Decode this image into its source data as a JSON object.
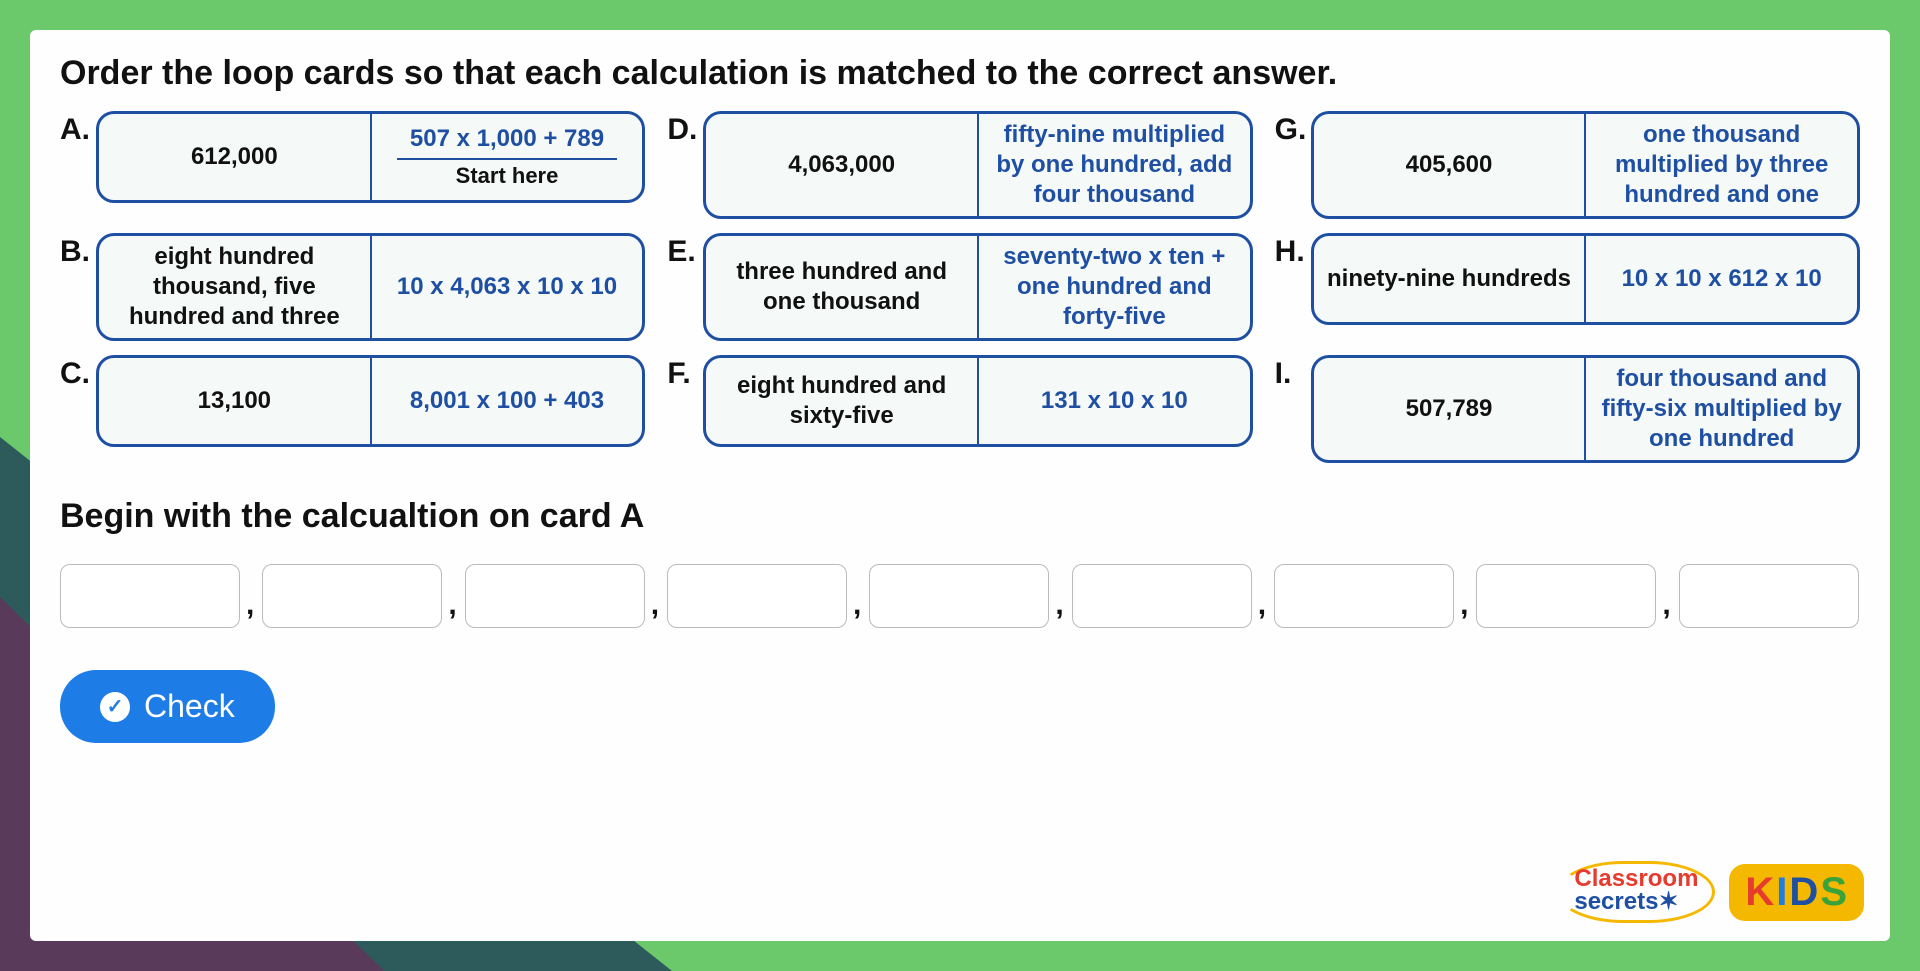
{
  "instruction": "Order the loop cards so that each calculation is matched to the correct answer.",
  "begin_text": "Begin with the calcualtion on card A",
  "check_label": "Check",
  "colors": {
    "card_border": "#1e4fa3",
    "card_bg": "#f5f9f7",
    "left_text": "#111111",
    "right_text": "#1e4fa3",
    "panel_bg": "#fdfefd",
    "button_bg": "#1e7ce6",
    "bg_green": "#6bc96b",
    "bg_teal": "#2d5a5a",
    "bg_purple": "#5a3a5a"
  },
  "cards": [
    {
      "letter": "A.",
      "left": "612,000",
      "right": "507 x 1,000 + 789",
      "start_here": "Start here"
    },
    {
      "letter": "D.",
      "left": "4,063,000",
      "right": "fifty-nine multiplied by one hundred, add four thousand"
    },
    {
      "letter": "G.",
      "left": "405,600",
      "right": "one thousand multiplied by three hundred and one"
    },
    {
      "letter": "B.",
      "left": "eight hundred thousand, five hundred and three",
      "right": "10 x 4,063 x 10 x 10"
    },
    {
      "letter": "E.",
      "left": "three hundred and one thousand",
      "right": "seventy-two x ten + one hundred and forty-five"
    },
    {
      "letter": "H.",
      "left": "ninety-nine hundreds",
      "right": "10 x 10 x 612 x 10"
    },
    {
      "letter": "C.",
      "left": "13,100",
      "right": "8,001 x 100 + 403"
    },
    {
      "letter": "F.",
      "left": "eight hundred and sixty-five",
      "right": "131 x 10 x 10"
    },
    {
      "letter": "I.",
      "left": "507,789",
      "right": "four thousand and fifty-six multiplied by one hundred"
    }
  ],
  "input_count": 9,
  "logo": {
    "classroom": "Classroom",
    "secrets": "secrets",
    "kids": [
      "K",
      "I",
      "D",
      "S"
    ]
  }
}
